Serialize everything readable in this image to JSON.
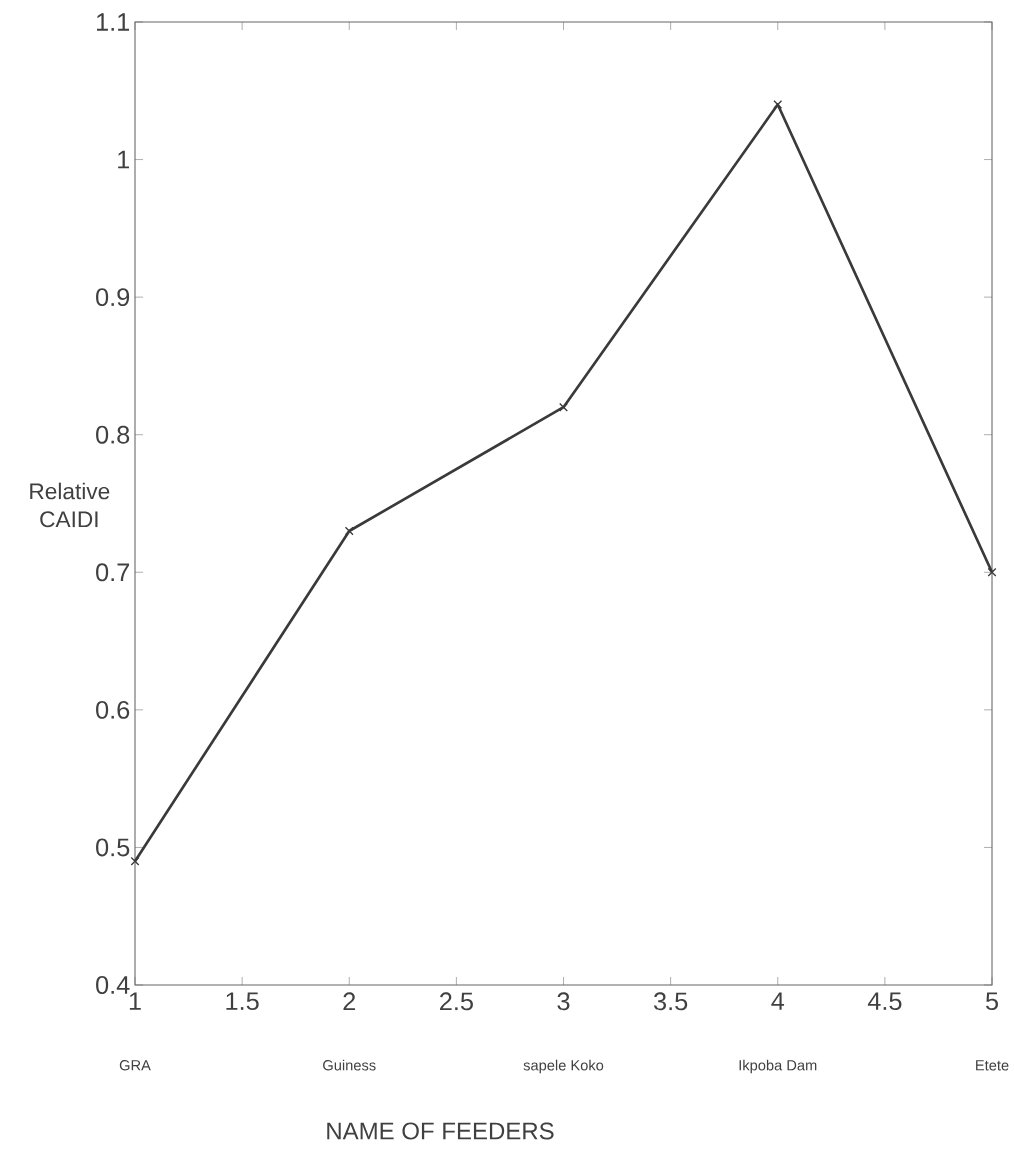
{
  "chart_data": {
    "type": "line",
    "xlabel": "NAME OF FEEDERS",
    "ylabel": "Relative CAIDI",
    "x": [
      1,
      2,
      3,
      4,
      5
    ],
    "series": [
      {
        "color": "#3a3a3a",
        "values": [
          0.49,
          0.73,
          0.82,
          1.04,
          0.7
        ]
      }
    ],
    "xlim": [
      1,
      5
    ],
    "xticks": [
      1,
      1.5,
      2,
      2.5,
      3,
      3.5,
      4,
      4.5,
      5
    ],
    "ylim": [
      0.4,
      1.1
    ],
    "yticks": [
      0.4,
      0.5,
      0.6,
      0.7,
      0.8,
      0.9,
      1,
      1.1
    ],
    "annotations": [
      "GRA",
      "Guiness",
      "sapele Koko",
      "Ikpoba Dam",
      "Etete"
    ],
    "marker": "cross",
    "line_style": "solid",
    "grid": false
  }
}
